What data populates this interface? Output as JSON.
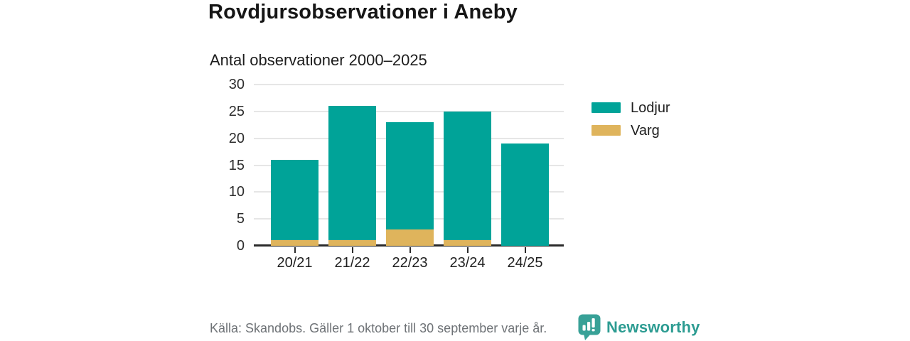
{
  "page": {
    "background": "#ffffff"
  },
  "header": {
    "title": "Rovdjursobservationer i Aneby",
    "subtitle": "Antal observationer 2000–2025"
  },
  "chart_data": {
    "type": "bar",
    "stacked": true,
    "categories": [
      "20/21",
      "21/22",
      "22/23",
      "23/24",
      "24/25"
    ],
    "series": [
      {
        "name": "Lodjur",
        "color": "#00A398",
        "values": [
          15,
          25,
          20,
          24,
          19
        ]
      },
      {
        "name": "Varg",
        "color": "#DFB45C",
        "values": [
          1,
          1,
          3,
          1,
          0
        ]
      }
    ],
    "totals": [
      16,
      26,
      23,
      25,
      19
    ],
    "title": "Rovdjursobservationer i Aneby",
    "subtitle": "Antal observationer 2000–2025",
    "xlabel": "",
    "ylabel": "",
    "ylim": [
      0,
      30
    ],
    "yticks": [
      0,
      5,
      10,
      15,
      20,
      25,
      30
    ],
    "grid": true,
    "legend_position": "right"
  },
  "legend": {
    "items": [
      {
        "label": "Lodjur",
        "color": "#00A398"
      },
      {
        "label": "Varg",
        "color": "#DFB45C"
      }
    ]
  },
  "footer": {
    "source": "Källa: Skandobs. Gäller 1 oktober till 30 september varje år.",
    "brand": "Newsworthy",
    "brand_color": "#2D9C92",
    "icon": "bar-chart-speech-bubble-icon",
    "icon_color": "#38A197"
  }
}
